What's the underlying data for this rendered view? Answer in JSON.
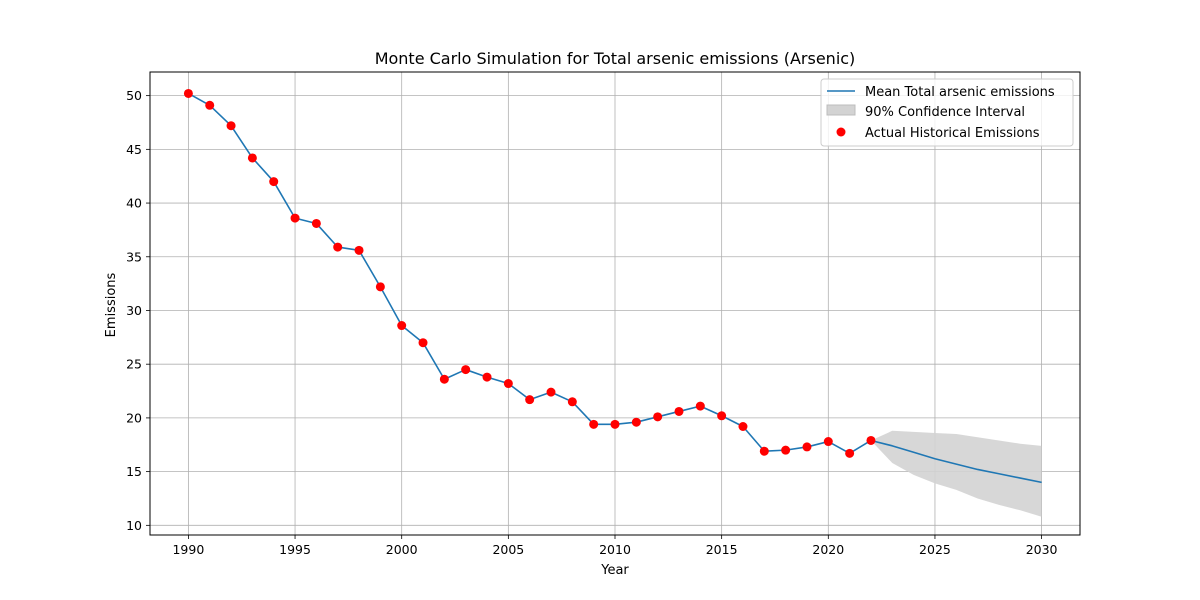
{
  "chart_data": {
    "type": "line",
    "title": "Monte Carlo Simulation for Total arsenic emissions (Arsenic)",
    "xlabel": "Year",
    "ylabel": "Emissions",
    "xlim": [
      1988.2,
      2031.8
    ],
    "ylim": [
      9.1,
      52.2
    ],
    "xticks": [
      1990,
      1995,
      2000,
      2005,
      2010,
      2015,
      2020,
      2025,
      2030
    ],
    "yticks": [
      10,
      15,
      20,
      25,
      30,
      35,
      40,
      45,
      50
    ],
    "grid": true,
    "legend_position": "top-right",
    "colors": {
      "mean_line": "#1f77b4",
      "confidence_fill": "#d3d3d3",
      "actual_points": "#ff0000",
      "grid": "#b0b0b0"
    },
    "series": [
      {
        "name": "Mean Total arsenic emissions",
        "kind": "line",
        "x": [
          1990,
          1991,
          1992,
          1993,
          1994,
          1995,
          1996,
          1997,
          1998,
          1999,
          2000,
          2001,
          2002,
          2003,
          2004,
          2005,
          2006,
          2007,
          2008,
          2009,
          2010,
          2011,
          2012,
          2013,
          2014,
          2015,
          2016,
          2017,
          2018,
          2019,
          2020,
          2021,
          2022,
          2023,
          2024,
          2025,
          2026,
          2027,
          2028,
          2029,
          2030
        ],
        "y": [
          50.2,
          49.1,
          47.2,
          44.2,
          42.0,
          38.6,
          38.1,
          35.9,
          35.6,
          32.2,
          28.6,
          27.0,
          23.6,
          24.5,
          23.8,
          23.2,
          21.7,
          22.4,
          21.5,
          19.4,
          19.4,
          19.6,
          20.1,
          20.6,
          21.1,
          20.2,
          19.2,
          16.9,
          17.0,
          17.3,
          17.8,
          16.7,
          17.9,
          17.4,
          16.8,
          16.2,
          15.7,
          15.2,
          14.8,
          14.4,
          14.0
        ]
      },
      {
        "name": "90% Confidence Interval",
        "kind": "band",
        "x": [
          2022,
          2023,
          2024,
          2025,
          2026,
          2027,
          2028,
          2029,
          2030
        ],
        "lower": [
          17.9,
          15.8,
          14.7,
          13.9,
          13.3,
          12.5,
          11.9,
          11.4,
          10.8
        ],
        "upper": [
          17.9,
          18.8,
          18.7,
          18.6,
          18.5,
          18.2,
          17.9,
          17.6,
          17.4
        ]
      },
      {
        "name": "Actual Historical Emissions",
        "kind": "scatter",
        "x": [
          1990,
          1991,
          1992,
          1993,
          1994,
          1995,
          1996,
          1997,
          1998,
          1999,
          2000,
          2001,
          2002,
          2003,
          2004,
          2005,
          2006,
          2007,
          2008,
          2009,
          2010,
          2011,
          2012,
          2013,
          2014,
          2015,
          2016,
          2017,
          2018,
          2019,
          2020,
          2021,
          2022
        ],
        "y": [
          50.2,
          49.1,
          47.2,
          44.2,
          42.0,
          38.6,
          38.1,
          35.9,
          35.6,
          32.2,
          28.6,
          27.0,
          23.6,
          24.5,
          23.8,
          23.2,
          21.7,
          22.4,
          21.5,
          19.4,
          19.4,
          19.6,
          20.1,
          20.6,
          21.1,
          20.2,
          19.2,
          16.9,
          17.0,
          17.3,
          17.8,
          16.7,
          17.9
        ]
      }
    ]
  }
}
